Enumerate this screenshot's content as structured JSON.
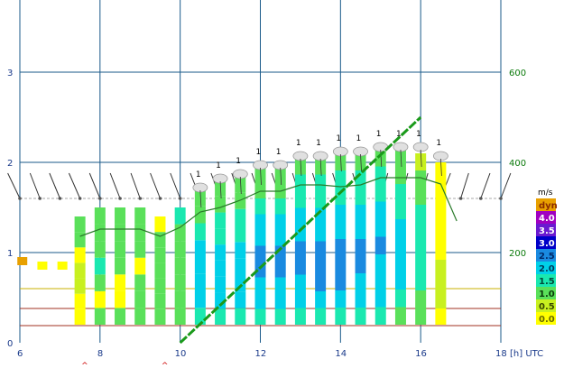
{
  "chart_data": {
    "type": "bar",
    "x_axis": {
      "ticks": [
        "6",
        "8",
        "10",
        "12",
        "14",
        "16",
        "18"
      ],
      "range": [
        6,
        18
      ],
      "unit_label": "[h] UTC"
    },
    "y_left": {
      "ticks": [
        "0",
        "1",
        "2",
        "3"
      ],
      "range": [
        0,
        3.8
      ]
    },
    "y_right": {
      "ticks": [
        "200",
        "400",
        "600"
      ],
      "range": [
        0,
        760
      ]
    },
    "legend": {
      "title": "m/s",
      "position": "right",
      "entries": [
        {
          "label": "dyn",
          "color": "#e8a000",
          "text_color": "#8a2a00"
        },
        {
          "label": "4.0",
          "color": "#a000c0",
          "text_color": "#ffffff"
        },
        {
          "label": "3.5",
          "color": "#6a1ad0",
          "text_color": "#ffffff"
        },
        {
          "label": "3.0",
          "color": "#0000c8",
          "text_color": "#ffffff"
        },
        {
          "label": "2.5",
          "color": "#1a8ae0",
          "text_color": "#002a6a"
        },
        {
          "label": "2.0",
          "color": "#00d0e8",
          "text_color": "#003a5a"
        },
        {
          "label": "1.5",
          "color": "#1ae8b0",
          "text_color": "#004a3a"
        },
        {
          "label": "1.0",
          "color": "#5ae05a",
          "text_color": "#0a3a0a"
        },
        {
          "label": "0.5",
          "color": "#c8f020",
          "text_color": "#3a4a00"
        },
        {
          "label": "0.0",
          "color": "#ffff00",
          "text_color": "#6a6a00"
        }
      ]
    },
    "columns": [
      {
        "t": 7.5,
        "top": 1.4,
        "cells": [
          "#ffff00",
          "#ffff00",
          "#c8f020",
          "#c8f020",
          "#ffff00",
          "#5ae05a",
          "#5ae05a"
        ]
      },
      {
        "t": 8.0,
        "top": 1.5,
        "cells": [
          "#5ae05a",
          "#ffff00",
          "#5ae05a",
          "#1ae8b0",
          "#5ae05a",
          "#5ae05a",
          "#5ae05a"
        ]
      },
      {
        "t": 8.5,
        "top": 1.5,
        "cells": [
          "#5ae05a",
          "#ffff00",
          "#ffff00",
          "#5ae05a",
          "#5ae05a",
          "#5ae05a",
          "#5ae05a"
        ]
      },
      {
        "t": 9.0,
        "top": 1.5,
        "cells": [
          "#5ae05a",
          "#5ae05a",
          "#5ae05a",
          "#ffff00",
          "#5ae05a",
          "#5ae05a",
          "#5ae05a"
        ]
      },
      {
        "t": 9.5,
        "top": 1.4,
        "cells": [
          "#5ae05a",
          "#5ae05a",
          "#5ae05a",
          "#5ae05a",
          "#5ae05a",
          "#5ae05a",
          "#ffff00"
        ]
      },
      {
        "t": 10.0,
        "top": 1.5,
        "cells": [
          "#5ae05a",
          "#5ae05a",
          "#5ae05a",
          "#5ae05a",
          "#5ae05a",
          "#5ae05a",
          "#1ae8b0"
        ]
      },
      {
        "t": 10.5,
        "top": 1.7,
        "cells": [
          "#1ae8b0",
          "#00d0e8",
          "#00d0e8",
          "#00d0e8",
          "#00d0e8",
          "#1ae8b0",
          "#5ae05a",
          "#5ae05a"
        ]
      },
      {
        "t": 11.0,
        "top": 1.8,
        "cells": [
          "#1ae8b0",
          "#00d0e8",
          "#00d0e8",
          "#00d0e8",
          "#00d0e8",
          "#1ae8b0",
          "#1ae8b0",
          "#5ae05a",
          "#5ae05a"
        ]
      },
      {
        "t": 11.5,
        "top": 1.85,
        "cells": [
          "#1ae8b0",
          "#00d0e8",
          "#00d0e8",
          "#00d0e8",
          "#00d0e8",
          "#1ae8b0",
          "#1ae8b0",
          "#5ae05a",
          "#5ae05a"
        ]
      },
      {
        "t": 12.0,
        "top": 1.95,
        "cells": [
          "#1ae8b0",
          "#00d0e8",
          "#00d0e8",
          "#1a8ae0",
          "#1a8ae0",
          "#00d0e8",
          "#00d0e8",
          "#1ae8b0",
          "#5ae05a",
          "#5ae05a"
        ]
      },
      {
        "t": 12.5,
        "top": 1.95,
        "cells": [
          "#1ae8b0",
          "#00d0e8",
          "#00d0e8",
          "#1a8ae0",
          "#1a8ae0",
          "#00d0e8",
          "#00d0e8",
          "#1ae8b0",
          "#5ae05a",
          "#5ae05a"
        ]
      },
      {
        "t": 13.0,
        "top": 2.05,
        "cells": [
          "#1ae8b0",
          "#00d0e8",
          "#00d0e8",
          "#1a8ae0",
          "#1a8ae0",
          "#00d0e8",
          "#00d0e8",
          "#1ae8b0",
          "#1ae8b0",
          "#5ae05a"
        ]
      },
      {
        "t": 13.5,
        "top": 2.05,
        "cells": [
          "#1ae8b0",
          "#00d0e8",
          "#1a8ae0",
          "#1a8ae0",
          "#1a8ae0",
          "#00d0e8",
          "#00d0e8",
          "#1ae8b0",
          "#1ae8b0",
          "#5ae05a"
        ]
      },
      {
        "t": 14.0,
        "top": 2.1,
        "cells": [
          "#1ae8b0",
          "#00d0e8",
          "#1a8ae0",
          "#1a8ae0",
          "#1a8ae0",
          "#00d0e8",
          "#00d0e8",
          "#1ae8b0",
          "#1ae8b0",
          "#5ae05a"
        ]
      },
      {
        "t": 14.5,
        "top": 2.1,
        "cells": [
          "#1ae8b0",
          "#00d0e8",
          "#00d0e8",
          "#1a8ae0",
          "#1a8ae0",
          "#00d0e8",
          "#00d0e8",
          "#1ae8b0",
          "#1ae8b0",
          "#5ae05a"
        ]
      },
      {
        "t": 15.0,
        "top": 2.15,
        "cells": [
          "#1ae8b0",
          "#00d0e8",
          "#00d0e8",
          "#00d0e8",
          "#1a8ae0",
          "#00d0e8",
          "#00d0e8",
          "#1ae8b0",
          "#1ae8b0",
          "#5ae05a"
        ]
      },
      {
        "t": 15.5,
        "top": 2.15,
        "cells": [
          "#5ae05a",
          "#1ae8b0",
          "#00d0e8",
          "#00d0e8",
          "#00d0e8",
          "#00d0e8",
          "#1ae8b0",
          "#1ae8b0",
          "#5ae05a",
          "#5ae05a"
        ]
      },
      {
        "t": 16.0,
        "top": 2.1,
        "cells": [
          "#5ae05a",
          "#5ae05a",
          "#1ae8b0",
          "#1ae8b0",
          "#1ae8b0",
          "#1ae8b0",
          "#1ae8b0",
          "#5ae05a",
          "#5ae05a",
          "#c8f020"
        ]
      },
      {
        "t": 16.5,
        "top": 2.0,
        "cells": [
          "#ffff00",
          "#c8f020",
          "#c8f020",
          "#c8f020",
          "#ffff00",
          "#ffff00",
          "#ffff00",
          "#ffff00",
          "#ffff00",
          "#ffff00"
        ]
      }
    ],
    "small_squares": [
      {
        "t": 6.05,
        "y": 0.9,
        "color": "#e8a000"
      },
      {
        "t": 6.55,
        "y": 0.85,
        "color": "#ffff00"
      },
      {
        "t": 7.05,
        "y": 0.85,
        "color": "#ffff00"
      }
    ],
    "clouds": [
      {
        "t": 10.5,
        "y": 1.7,
        "label": "1"
      },
      {
        "t": 11.0,
        "y": 1.8,
        "label": "1"
      },
      {
        "t": 11.5,
        "y": 1.85,
        "label": "1"
      },
      {
        "t": 12.0,
        "y": 1.95,
        "label": "1"
      },
      {
        "t": 12.5,
        "y": 1.95,
        "label": "1"
      },
      {
        "t": 13.0,
        "y": 2.05,
        "label": "1"
      },
      {
        "t": 13.5,
        "y": 2.05,
        "label": "1"
      },
      {
        "t": 14.0,
        "y": 2.1,
        "label": "1"
      },
      {
        "t": 14.5,
        "y": 2.1,
        "label": "1"
      },
      {
        "t": 15.0,
        "y": 2.15,
        "label": "1"
      },
      {
        "t": 15.5,
        "y": 2.15,
        "label": "1"
      },
      {
        "t": 16.0,
        "y": 2.15,
        "label": "1"
      },
      {
        "t": 16.5,
        "y": 2.05,
        "label": "1"
      }
    ],
    "wind_barbs": [
      {
        "t": 6.0,
        "angle": 140
      },
      {
        "t": 6.5,
        "angle": 160
      },
      {
        "t": 7.0,
        "angle": 155
      },
      {
        "t": 7.5,
        "angle": 150
      },
      {
        "t": 8.0,
        "angle": 155
      },
      {
        "t": 8.5,
        "angle": 160
      },
      {
        "t": 9.0,
        "angle": 165
      },
      {
        "t": 9.5,
        "angle": 160
      },
      {
        "t": 10.0,
        "angle": 160
      },
      {
        "t": 10.5,
        "angle": 160
      },
      {
        "t": 11.0,
        "angle": 165
      },
      {
        "t": 11.5,
        "angle": 170
      },
      {
        "t": 12.0,
        "angle": 170
      },
      {
        "t": 12.5,
        "angle": 170
      },
      {
        "t": 13.0,
        "angle": 175
      },
      {
        "t": 13.5,
        "angle": 175
      },
      {
        "t": 14.0,
        "angle": 175
      },
      {
        "t": 14.5,
        "angle": 175
      },
      {
        "t": 15.0,
        "angle": 180
      },
      {
        "t": 15.5,
        "angle": 180
      },
      {
        "t": 16.0,
        "angle": 180
      },
      {
        "t": 16.5,
        "angle": 200
      },
      {
        "t": 17.0,
        "angle": 185
      },
      {
        "t": 17.5,
        "angle": 195
      },
      {
        "t": 18.0,
        "angle": 200
      }
    ],
    "dark_green_line": [
      {
        "t": 7.5,
        "y": 1.18
      },
      {
        "t": 8.0,
        "y": 1.26
      },
      {
        "t": 8.5,
        "y": 1.26
      },
      {
        "t": 9.0,
        "y": 1.26
      },
      {
        "t": 9.5,
        "y": 1.18
      },
      {
        "t": 10.0,
        "y": 1.28
      },
      {
        "t": 10.5,
        "y": 1.45
      },
      {
        "t": 11.0,
        "y": 1.5
      },
      {
        "t": 11.5,
        "y": 1.58
      },
      {
        "t": 12.0,
        "y": 1.68
      },
      {
        "t": 12.5,
        "y": 1.68
      },
      {
        "t": 13.0,
        "y": 1.75
      },
      {
        "t": 13.5,
        "y": 1.75
      },
      {
        "t": 14.0,
        "y": 1.73
      },
      {
        "t": 14.5,
        "y": 1.75
      },
      {
        "t": 15.0,
        "y": 1.83
      },
      {
        "t": 15.5,
        "y": 1.83
      },
      {
        "t": 16.0,
        "y": 1.83
      },
      {
        "t": 16.5,
        "y": 1.76
      },
      {
        "t": 16.9,
        "y": 1.35
      }
    ],
    "dashed_line": {
      "series_axis": "right",
      "from": {
        "t": 10.0,
        "v": 0
      },
      "to": {
        "t": 16.0,
        "v": 500
      },
      "color": "#1a9a1a"
    },
    "horizontal_lines": [
      {
        "y": 0.6,
        "color": "#c8b000"
      },
      {
        "y": 0.38,
        "color": "#a03020"
      },
      {
        "y": 0.19,
        "color": "#a03020"
      },
      {
        "y": 1.6,
        "color": "#aaaaaa",
        "dashed": true
      }
    ],
    "carets": [
      {
        "t": 7.6,
        "label": "^"
      },
      {
        "t": 9.6,
        "label": "^"
      }
    ]
  }
}
